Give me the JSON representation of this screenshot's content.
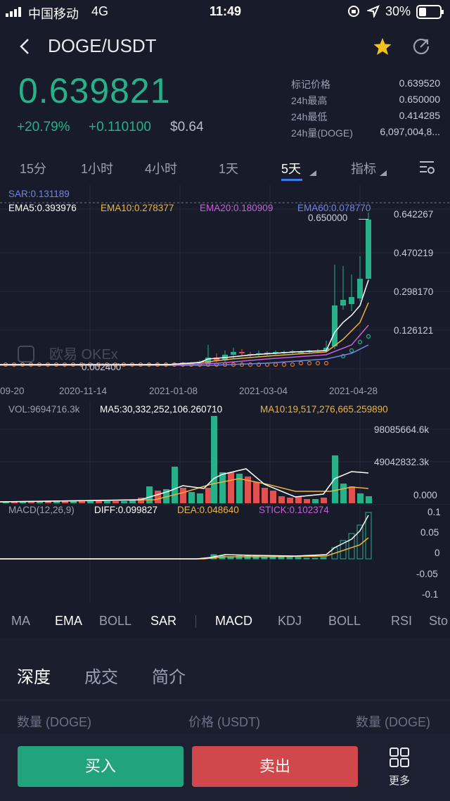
{
  "status_bar": {
    "carrier": "中国移动",
    "network": "4G",
    "time": "11:49",
    "battery": "30%"
  },
  "header": {
    "pair": "DOGE/USDT"
  },
  "price": {
    "last": "0.639821",
    "change_pct": "+20.79%",
    "change_abs": "+0.110100",
    "usd": "$0.64"
  },
  "stats": [
    {
      "label": "标记价格",
      "value": "0.639520"
    },
    {
      "label": "24h最高",
      "value": "0.650000"
    },
    {
      "label": "24h最低",
      "value": "0.414285"
    },
    {
      "label": "24h量(DOGE)",
      "value": "6,097,004,8..."
    }
  ],
  "tabs": [
    "15分",
    "1小时",
    "4小时",
    "1天",
    "5天",
    "指标"
  ],
  "main_chart": {
    "sar": "SAR:0.131189",
    "ema5": "EMA5:0.393976",
    "ema10": "EMA10:0.278377",
    "ema20": "EMA20:0.180909",
    "ema60": "EMA60:0.078770",
    "y_labels": [
      "0.642267",
      "0.470219",
      "0.298170",
      "0.126121"
    ],
    "high_marker": "0.650000",
    "low_marker": "0.002400",
    "x_labels": [
      "09-20",
      "2020-11-14",
      "2021-01-08",
      "2021-03-04",
      "2021-04-28"
    ],
    "watermark": "欧易 OKEx"
  },
  "vol_chart": {
    "vol": "VOL:9694716.3k",
    "ma5": "MA5:30,332,252,106.260710",
    "ma10": "MA10:19,517,276,665.259890",
    "y_labels": [
      "98085664.6k",
      "49042832.3k",
      "0.000"
    ]
  },
  "macd_chart": {
    "macd": "MACD(12,26,9)",
    "diff": "DIFF:0.099827",
    "dea": "DEA:0.048640",
    "stick": "STICK:0.102374",
    "y_labels": [
      "0.1",
      "0.05",
      "0",
      "-0.05",
      "-0.1"
    ]
  },
  "indicator_tabs": [
    "MA",
    "EMA",
    "BOLL",
    "SAR",
    "MACD",
    "KDJ",
    "BOLL",
    "RSI",
    "Sto"
  ],
  "section_tabs": [
    "深度",
    "成交",
    "简介"
  ],
  "depth_headers": [
    "数量 (DOGE)",
    "价格 (USDT)",
    "数量 (DOGE)"
  ],
  "actions": {
    "buy": "买入",
    "sell": "卖出",
    "more": "更多"
  },
  "colors": {
    "up": "#27b08a",
    "down": "#e0514f",
    "accent": "#3b7cf0",
    "bg": "#181b29"
  }
}
